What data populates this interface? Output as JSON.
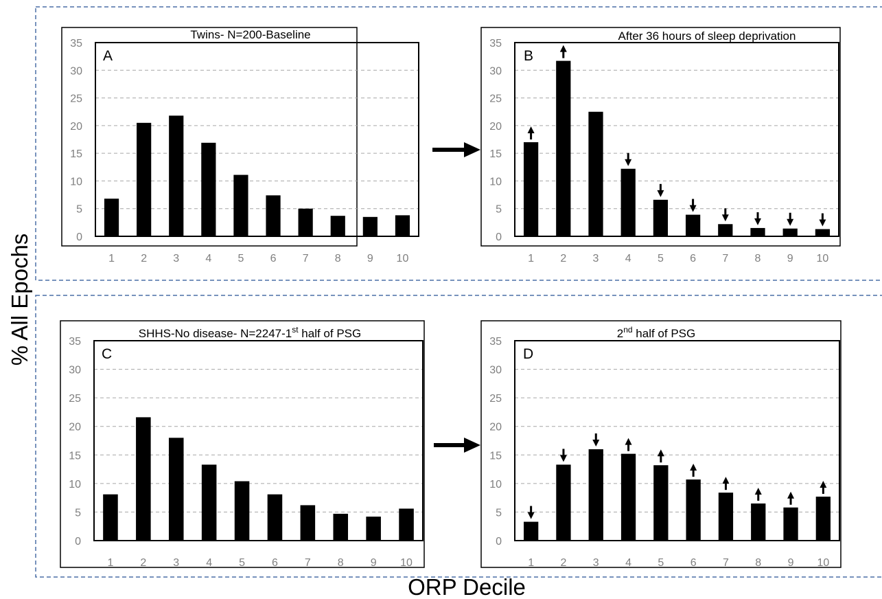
{
  "axis_labels": {
    "y": "% All Epochs",
    "x": "ORP Decile"
  },
  "colors": {
    "bar": "#000000",
    "grid": "#a6a6a6",
    "tick": "#7f7f7f",
    "section_border": "#4a6fa5"
  },
  "chart_data": [
    {
      "type": "bar",
      "panel": "A",
      "title": "Twins- N=200-Baseline",
      "title_sup": "",
      "title_rest": "",
      "categories": [
        "1",
        "2",
        "3",
        "4",
        "5",
        "6",
        "7",
        "8",
        "9",
        "10"
      ],
      "values": [
        6.8,
        20.5,
        21.8,
        16.9,
        11.1,
        7.4,
        5.0,
        3.7,
        3.5,
        3.8
      ],
      "change": [
        "",
        "",
        "",
        "",
        "",
        "",
        "",
        "",
        "",
        ""
      ],
      "ylim": [
        0,
        35
      ],
      "yticks": [
        0,
        5,
        10,
        15,
        20,
        25,
        30,
        35
      ],
      "grid": true
    },
    {
      "type": "bar",
      "panel": "B",
      "title": "After 36 hours of sleep deprivation",
      "title_sup": "",
      "title_rest": "",
      "categories": [
        "1",
        "2",
        "3",
        "4",
        "5",
        "6",
        "7",
        "8",
        "9",
        "10"
      ],
      "values": [
        17.0,
        31.7,
        22.5,
        12.2,
        6.6,
        3.9,
        2.2,
        1.5,
        1.4,
        1.3
      ],
      "change": [
        "up",
        "up",
        "",
        "down",
        "down",
        "down",
        "down",
        "down",
        "down",
        "down"
      ],
      "ylim": [
        0,
        35
      ],
      "yticks": [
        0,
        5,
        10,
        15,
        20,
        25,
        30,
        35
      ],
      "grid": true
    },
    {
      "type": "bar",
      "panel": "C",
      "title": "SHHS-No disease- N=2247-1",
      "title_sup": "st",
      "title_rest": " half of PSG",
      "categories": [
        "1",
        "2",
        "3",
        "4",
        "5",
        "6",
        "7",
        "8",
        "9",
        "10"
      ],
      "values": [
        8.1,
        21.6,
        18.0,
        13.3,
        10.4,
        8.1,
        6.2,
        4.7,
        4.2,
        5.6
      ],
      "change": [
        "",
        "",
        "",
        "",
        "",
        "",
        "",
        "",
        "",
        ""
      ],
      "ylim": [
        0,
        35
      ],
      "yticks": [
        0,
        5,
        10,
        15,
        20,
        25,
        30,
        35
      ],
      "grid": true
    },
    {
      "type": "bar",
      "panel": "D",
      "title": "2",
      "title_sup": "nd",
      "title_rest": "  half of PSG",
      "categories": [
        "1",
        "2",
        "3",
        "4",
        "5",
        "6",
        "7",
        "8",
        "9",
        "10"
      ],
      "values": [
        3.3,
        13.3,
        16.0,
        15.2,
        13.2,
        10.7,
        8.4,
        6.5,
        5.8,
        7.7
      ],
      "change": [
        "down",
        "down",
        "down",
        "up",
        "up",
        "up",
        "up",
        "up",
        "up",
        "up"
      ],
      "ylim": [
        0,
        35
      ],
      "yticks": [
        0,
        5,
        10,
        15,
        20,
        25,
        30,
        35
      ],
      "grid": true
    }
  ]
}
